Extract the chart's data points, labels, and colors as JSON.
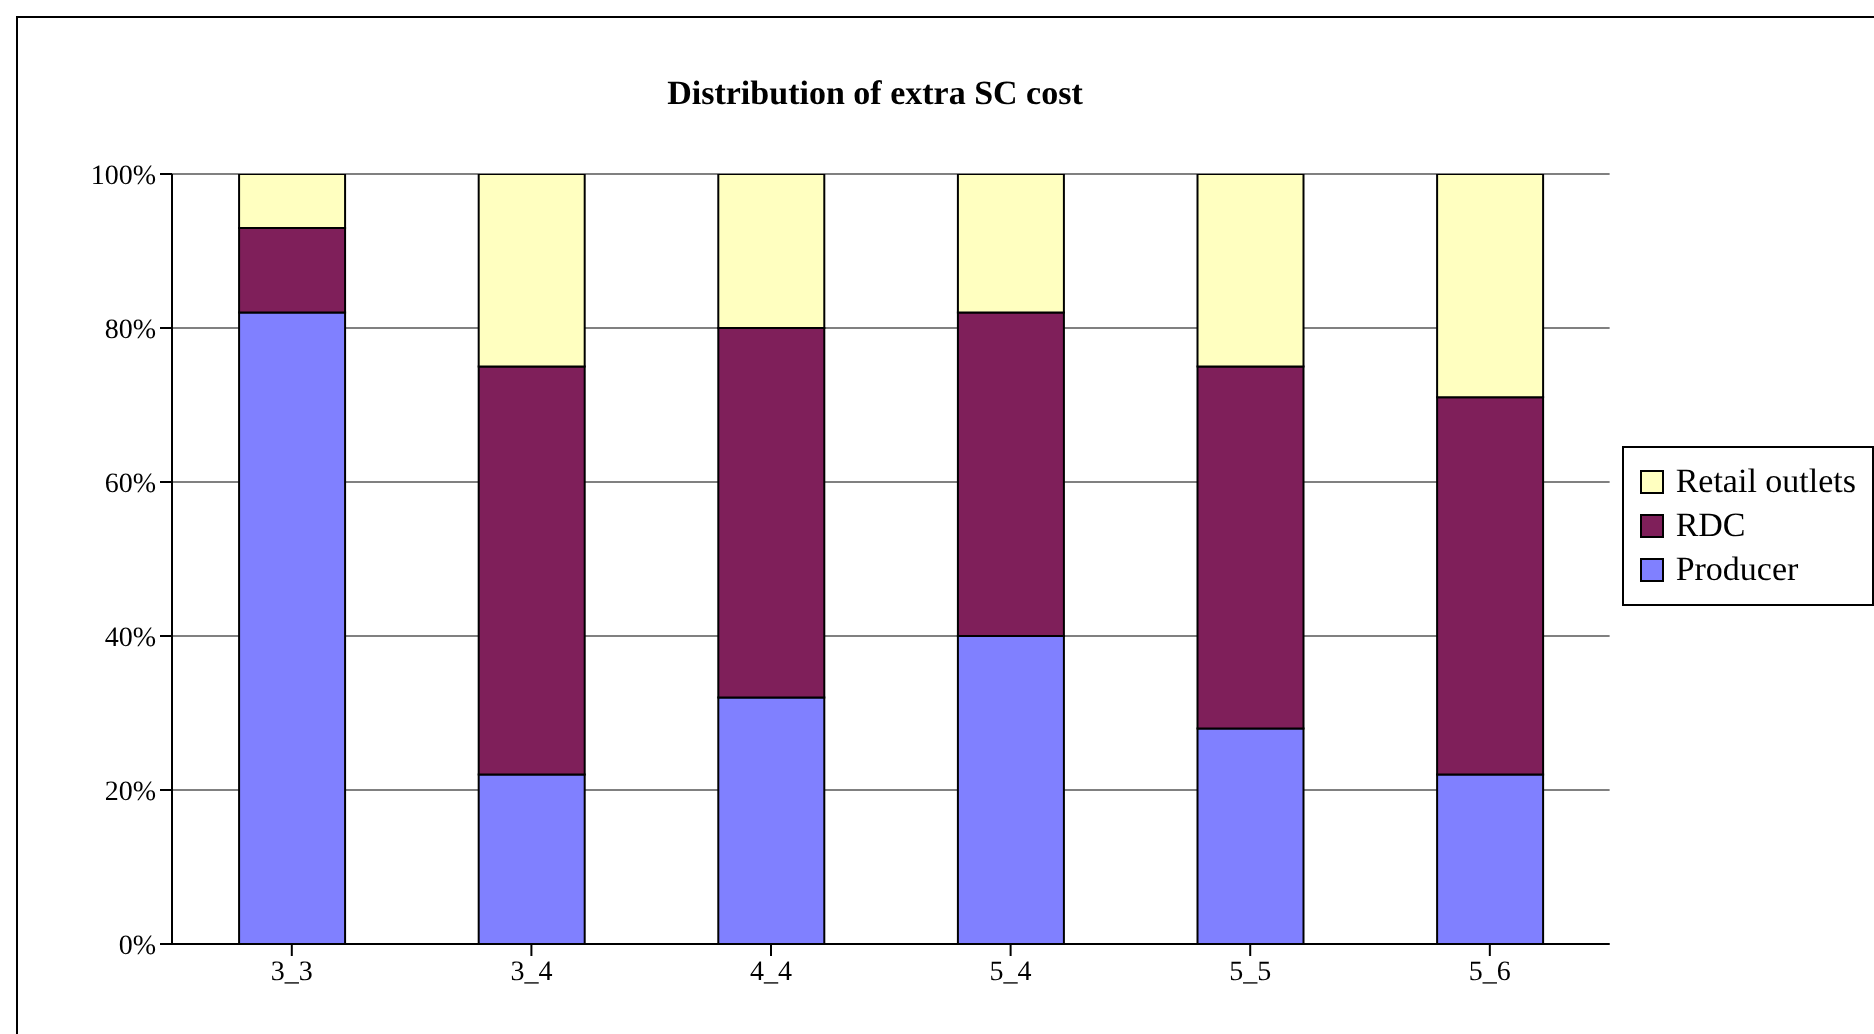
{
  "chart_data": {
    "type": "bar",
    "title": "Distribution of extra SC cost",
    "categories": [
      "3_3",
      "3_4",
      "4_4",
      "5_4",
      "5_5",
      "5_6"
    ],
    "stacked": true,
    "series": [
      {
        "name": "Producer",
        "color": "#8080ff",
        "values": [
          82,
          22,
          32,
          40,
          28,
          22
        ]
      },
      {
        "name": "RDC",
        "color": "#7f1f5a",
        "values": [
          11,
          53,
          48,
          42,
          47,
          49
        ]
      },
      {
        "name": "Retail outlets",
        "color": "#ffffc0",
        "values": [
          7,
          25,
          20,
          18,
          25,
          29
        ]
      }
    ],
    "ylim": [
      0,
      100
    ],
    "yticks": [
      {
        "value": 0,
        "label": "0%"
      },
      {
        "value": 20,
        "label": "20%"
      },
      {
        "value": 40,
        "label": "40%"
      },
      {
        "value": 60,
        "label": "60%"
      },
      {
        "value": 80,
        "label": "80%"
      },
      {
        "value": 100,
        "label": "100%"
      }
    ],
    "grid": "y",
    "legend": "right"
  }
}
